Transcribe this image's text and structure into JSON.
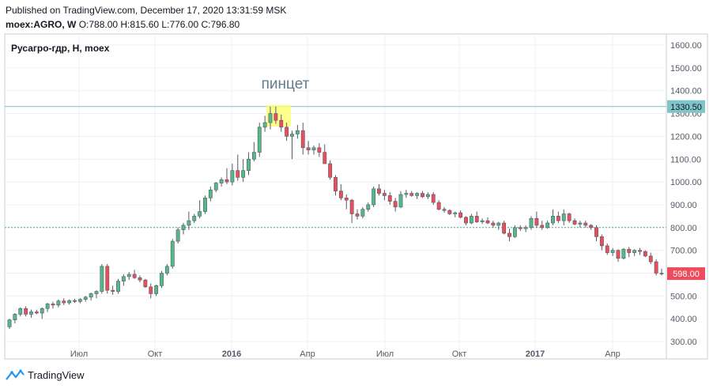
{
  "header": {
    "published": "Published on TradingView.com, December 17, 2020 13:31:59 MSK",
    "symbol": "moex:AGRO, W",
    "ohlc": "O:788.00 H:815.60 L:776.00 C:796.80"
  },
  "footer": {
    "brand": "TradingView"
  },
  "colors": {
    "up": "#53b987",
    "down": "#eb4d5c",
    "hline_cyan": "#7fc4c8",
    "hline_green": "#4caf8c",
    "highlight": "#ffff66",
    "last_price_bg": "#eb4d5c"
  },
  "chart_data": {
    "type": "candlestick",
    "title": "Русагро-гдр, Н, moex",
    "annotation": "пинцет",
    "ylim": [
      280,
      1640
    ],
    "y_ticks": [
      "1600.00",
      "1500.00",
      "1400.00",
      "1300.00",
      "1200.00",
      "1100.00",
      "1000.00",
      "900.00",
      "800.00",
      "700.00",
      "600.00",
      "500.00",
      "400.00",
      "300.00"
    ],
    "x_ticks": [
      "Июл",
      "Окт",
      "2016",
      "Апр",
      "Июл",
      "Окт",
      "2017",
      "Апр"
    ],
    "bold_ticks": [
      "2016",
      "2017"
    ],
    "horizontal_lines": [
      {
        "value": 1330.5,
        "label": "1330.50"
      },
      {
        "value": 800
      }
    ],
    "last_price": {
      "value": 598,
      "label": "598.00"
    },
    "grid": true,
    "candles": [
      {
        "o": 365,
        "h": 400,
        "l": 355,
        "c": 395
      },
      {
        "o": 395,
        "h": 425,
        "l": 380,
        "c": 420
      },
      {
        "o": 420,
        "h": 450,
        "l": 410,
        "c": 445
      },
      {
        "o": 445,
        "h": 455,
        "l": 410,
        "c": 420
      },
      {
        "o": 420,
        "h": 440,
        "l": 405,
        "c": 430
      },
      {
        "o": 430,
        "h": 440,
        "l": 420,
        "c": 425
      },
      {
        "o": 425,
        "h": 450,
        "l": 400,
        "c": 445
      },
      {
        "o": 445,
        "h": 470,
        "l": 430,
        "c": 465
      },
      {
        "o": 465,
        "h": 475,
        "l": 445,
        "c": 460
      },
      {
        "o": 460,
        "h": 485,
        "l": 450,
        "c": 478
      },
      {
        "o": 478,
        "h": 490,
        "l": 460,
        "c": 470
      },
      {
        "o": 470,
        "h": 485,
        "l": 462,
        "c": 480
      },
      {
        "o": 480,
        "h": 488,
        "l": 470,
        "c": 476
      },
      {
        "o": 476,
        "h": 490,
        "l": 468,
        "c": 485
      },
      {
        "o": 485,
        "h": 500,
        "l": 475,
        "c": 495
      },
      {
        "o": 495,
        "h": 515,
        "l": 480,
        "c": 510
      },
      {
        "o": 510,
        "h": 525,
        "l": 490,
        "c": 520
      },
      {
        "o": 520,
        "h": 640,
        "l": 510,
        "c": 630
      },
      {
        "o": 630,
        "h": 640,
        "l": 510,
        "c": 525
      },
      {
        "o": 525,
        "h": 545,
        "l": 505,
        "c": 520
      },
      {
        "o": 520,
        "h": 575,
        "l": 510,
        "c": 565
      },
      {
        "o": 565,
        "h": 595,
        "l": 545,
        "c": 585
      },
      {
        "o": 585,
        "h": 605,
        "l": 570,
        "c": 595
      },
      {
        "o": 595,
        "h": 615,
        "l": 575,
        "c": 580
      },
      {
        "o": 580,
        "h": 590,
        "l": 560,
        "c": 570
      },
      {
        "o": 570,
        "h": 575,
        "l": 535,
        "c": 540
      },
      {
        "o": 540,
        "h": 555,
        "l": 490,
        "c": 510
      },
      {
        "o": 510,
        "h": 550,
        "l": 500,
        "c": 545
      },
      {
        "o": 545,
        "h": 610,
        "l": 535,
        "c": 600
      },
      {
        "o": 600,
        "h": 640,
        "l": 590,
        "c": 630
      },
      {
        "o": 630,
        "h": 750,
        "l": 620,
        "c": 740
      },
      {
        "o": 740,
        "h": 800,
        "l": 730,
        "c": 790
      },
      {
        "o": 790,
        "h": 820,
        "l": 770,
        "c": 810
      },
      {
        "o": 810,
        "h": 870,
        "l": 790,
        "c": 830
      },
      {
        "o": 830,
        "h": 860,
        "l": 820,
        "c": 850
      },
      {
        "o": 850,
        "h": 920,
        "l": 840,
        "c": 870
      },
      {
        "o": 870,
        "h": 940,
        "l": 860,
        "c": 930
      },
      {
        "o": 930,
        "h": 980,
        "l": 915,
        "c": 965
      },
      {
        "o": 965,
        "h": 1000,
        "l": 955,
        "c": 995
      },
      {
        "o": 995,
        "h": 1020,
        "l": 980,
        "c": 1010
      },
      {
        "o": 1010,
        "h": 1060,
        "l": 990,
        "c": 1000
      },
      {
        "o": 1000,
        "h": 1080,
        "l": 985,
        "c": 1050
      },
      {
        "o": 1050,
        "h": 1120,
        "l": 1005,
        "c": 1020
      },
      {
        "o": 1020,
        "h": 1100,
        "l": 1000,
        "c": 1050
      },
      {
        "o": 1050,
        "h": 1130,
        "l": 1030,
        "c": 1100
      },
      {
        "o": 1100,
        "h": 1175,
        "l": 1090,
        "c": 1130
      },
      {
        "o": 1130,
        "h": 1260,
        "l": 1110,
        "c": 1240
      },
      {
        "o": 1240,
        "h": 1290,
        "l": 1220,
        "c": 1260
      },
      {
        "o": 1260,
        "h": 1330,
        "l": 1230,
        "c": 1300
      },
      {
        "o": 1300,
        "h": 1330,
        "l": 1255,
        "c": 1270
      },
      {
        "o": 1270,
        "h": 1295,
        "l": 1220,
        "c": 1240
      },
      {
        "o": 1240,
        "h": 1260,
        "l": 1180,
        "c": 1200
      },
      {
        "o": 1200,
        "h": 1225,
        "l": 1100,
        "c": 1210
      },
      {
        "o": 1210,
        "h": 1250,
        "l": 1190,
        "c": 1225
      },
      {
        "o": 1225,
        "h": 1260,
        "l": 1120,
        "c": 1150
      },
      {
        "o": 1150,
        "h": 1180,
        "l": 1120,
        "c": 1140
      },
      {
        "o": 1140,
        "h": 1160,
        "l": 1120,
        "c": 1150
      },
      {
        "o": 1150,
        "h": 1170,
        "l": 1110,
        "c": 1130
      },
      {
        "o": 1130,
        "h": 1165,
        "l": 1090,
        "c": 1080
      },
      {
        "o": 1080,
        "h": 1095,
        "l": 1010,
        "c": 1020
      },
      {
        "o": 1020,
        "h": 1030,
        "l": 940,
        "c": 960
      },
      {
        "o": 960,
        "h": 990,
        "l": 920,
        "c": 930
      },
      {
        "o": 930,
        "h": 945,
        "l": 880,
        "c": 920
      },
      {
        "o": 920,
        "h": 925,
        "l": 820,
        "c": 860
      },
      {
        "o": 860,
        "h": 880,
        "l": 835,
        "c": 850
      },
      {
        "o": 850,
        "h": 890,
        "l": 840,
        "c": 880
      },
      {
        "o": 880,
        "h": 910,
        "l": 870,
        "c": 900
      },
      {
        "o": 900,
        "h": 980,
        "l": 890,
        "c": 970
      },
      {
        "o": 970,
        "h": 990,
        "l": 940,
        "c": 950
      },
      {
        "o": 950,
        "h": 965,
        "l": 920,
        "c": 940
      },
      {
        "o": 940,
        "h": 955,
        "l": 900,
        "c": 915
      },
      {
        "o": 915,
        "h": 930,
        "l": 870,
        "c": 890
      },
      {
        "o": 890,
        "h": 960,
        "l": 885,
        "c": 945
      },
      {
        "o": 945,
        "h": 965,
        "l": 930,
        "c": 950
      },
      {
        "o": 950,
        "h": 960,
        "l": 935,
        "c": 940
      },
      {
        "o": 940,
        "h": 955,
        "l": 925,
        "c": 950
      },
      {
        "o": 950,
        "h": 960,
        "l": 930,
        "c": 935
      },
      {
        "o": 935,
        "h": 955,
        "l": 925,
        "c": 945
      },
      {
        "o": 945,
        "h": 955,
        "l": 900,
        "c": 910
      },
      {
        "o": 910,
        "h": 920,
        "l": 875,
        "c": 880
      },
      {
        "o": 880,
        "h": 890,
        "l": 865,
        "c": 875
      },
      {
        "o": 875,
        "h": 880,
        "l": 855,
        "c": 860
      },
      {
        "o": 860,
        "h": 870,
        "l": 845,
        "c": 865
      },
      {
        "o": 865,
        "h": 875,
        "l": 840,
        "c": 845
      },
      {
        "o": 845,
        "h": 850,
        "l": 810,
        "c": 820
      },
      {
        "o": 820,
        "h": 860,
        "l": 815,
        "c": 850
      },
      {
        "o": 850,
        "h": 870,
        "l": 820,
        "c": 825
      },
      {
        "o": 825,
        "h": 840,
        "l": 815,
        "c": 830
      },
      {
        "o": 830,
        "h": 845,
        "l": 815,
        "c": 820
      },
      {
        "o": 820,
        "h": 830,
        "l": 800,
        "c": 810
      },
      {
        "o": 810,
        "h": 825,
        "l": 790,
        "c": 820
      },
      {
        "o": 820,
        "h": 830,
        "l": 770,
        "c": 775
      },
      {
        "o": 775,
        "h": 795,
        "l": 740,
        "c": 760
      },
      {
        "o": 760,
        "h": 810,
        "l": 755,
        "c": 800
      },
      {
        "o": 800,
        "h": 810,
        "l": 785,
        "c": 795
      },
      {
        "o": 795,
        "h": 810,
        "l": 780,
        "c": 800
      },
      {
        "o": 800,
        "h": 850,
        "l": 790,
        "c": 840
      },
      {
        "o": 840,
        "h": 870,
        "l": 800,
        "c": 810
      },
      {
        "o": 810,
        "h": 830,
        "l": 790,
        "c": 800
      },
      {
        "o": 800,
        "h": 830,
        "l": 795,
        "c": 820
      },
      {
        "o": 820,
        "h": 880,
        "l": 810,
        "c": 850
      },
      {
        "o": 850,
        "h": 870,
        "l": 820,
        "c": 830
      },
      {
        "o": 830,
        "h": 880,
        "l": 810,
        "c": 860
      },
      {
        "o": 860,
        "h": 865,
        "l": 820,
        "c": 830
      },
      {
        "o": 830,
        "h": 840,
        "l": 810,
        "c": 815
      },
      {
        "o": 815,
        "h": 830,
        "l": 800,
        "c": 820
      },
      {
        "o": 820,
        "h": 830,
        "l": 800,
        "c": 810
      },
      {
        "o": 810,
        "h": 815,
        "l": 790,
        "c": 800
      },
      {
        "o": 800,
        "h": 810,
        "l": 740,
        "c": 760
      },
      {
        "o": 760,
        "h": 770,
        "l": 700,
        "c": 720
      },
      {
        "o": 720,
        "h": 730,
        "l": 680,
        "c": 690
      },
      {
        "o": 690,
        "h": 710,
        "l": 675,
        "c": 700
      },
      {
        "o": 700,
        "h": 705,
        "l": 650,
        "c": 665
      },
      {
        "o": 665,
        "h": 710,
        "l": 660,
        "c": 705
      },
      {
        "o": 705,
        "h": 715,
        "l": 670,
        "c": 690
      },
      {
        "o": 690,
        "h": 705,
        "l": 675,
        "c": 700
      },
      {
        "o": 700,
        "h": 710,
        "l": 680,
        "c": 695
      },
      {
        "o": 695,
        "h": 700,
        "l": 670,
        "c": 675
      },
      {
        "o": 675,
        "h": 690,
        "l": 640,
        "c": 650
      },
      {
        "o": 650,
        "h": 660,
        "l": 590,
        "c": 600
      },
      {
        "o": 600,
        "h": 620,
        "l": 590,
        "c": 598
      }
    ]
  }
}
